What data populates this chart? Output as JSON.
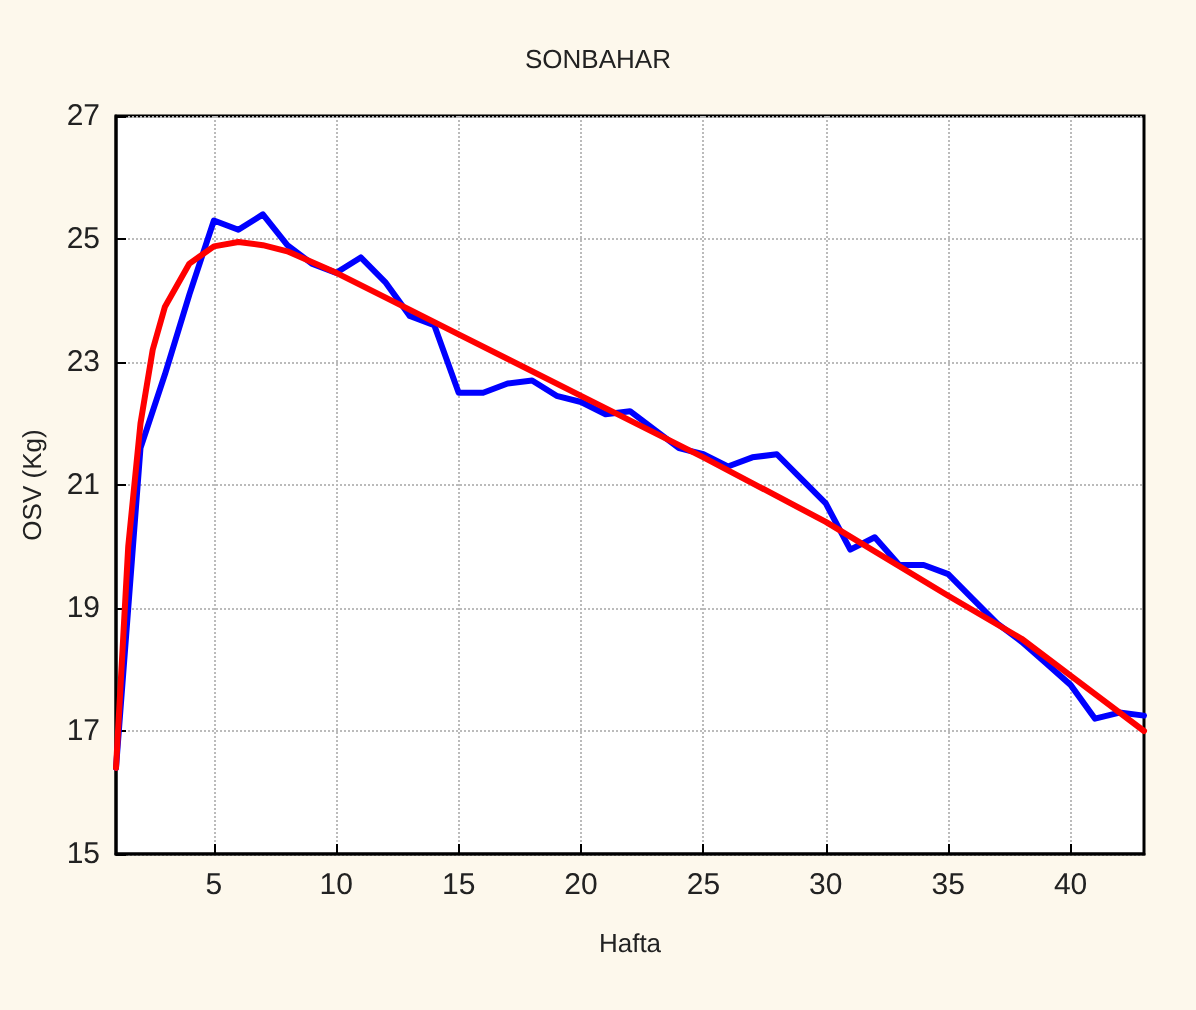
{
  "chart_data": {
    "type": "line",
    "title": "SONBAHAR",
    "xlabel": "Hafta",
    "ylabel": "OSV (Kg)",
    "xlim": [
      1,
      43
    ],
    "xticks": [
      5,
      10,
      15,
      20,
      25,
      30,
      35,
      40
    ],
    "ylim": [
      15,
      27
    ],
    "yticks": [
      15,
      17,
      19,
      21,
      23,
      25,
      27
    ],
    "grid": true,
    "marker": "none",
    "line_style": "solid",
    "series": [
      {
        "color": "#0000ff",
        "x": [
          1,
          2,
          3,
          4,
          5,
          6,
          7,
          8,
          9,
          10,
          11,
          12,
          13,
          14,
          15,
          16,
          17,
          18,
          19,
          20,
          21,
          22,
          23,
          24,
          25,
          26,
          27,
          28,
          29,
          30,
          31,
          32,
          33,
          34,
          35,
          36,
          37,
          38,
          39,
          40,
          41,
          42,
          43
        ],
        "values": [
          16.4,
          21.6,
          22.8,
          24.1,
          25.3,
          25.15,
          25.4,
          24.9,
          24.6,
          24.45,
          24.7,
          24.3,
          23.75,
          23.6,
          22.5,
          22.5,
          22.65,
          22.7,
          22.45,
          22.35,
          22.15,
          22.2,
          21.9,
          21.6,
          21.5,
          21.3,
          21.45,
          21.5,
          21.1,
          20.7,
          19.95,
          20.15,
          19.7,
          19.7,
          19.55,
          19.15,
          18.75,
          18.45,
          18.1,
          17.75,
          17.2,
          17.3,
          17.25
        ]
      },
      {
        "color": "#ff0000",
        "x": [
          1,
          1.5,
          2,
          2.5,
          3,
          4,
          5,
          6,
          7,
          8,
          10,
          12,
          15,
          20,
          25,
          30,
          35,
          38,
          40,
          43
        ],
        "values": [
          16.4,
          20,
          22,
          23.2,
          23.9,
          24.6,
          24.88,
          24.95,
          24.9,
          24.8,
          24.45,
          24.05,
          23.45,
          22.45,
          21.45,
          20.4,
          19.2,
          18.5,
          17.9,
          17
        ]
      }
    ]
  }
}
